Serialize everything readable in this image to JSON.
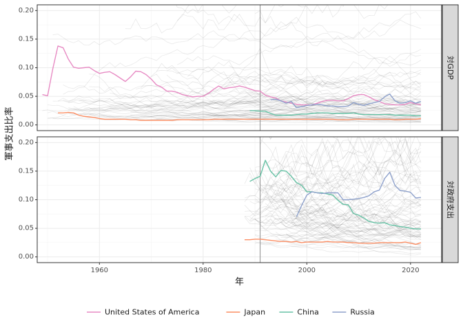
{
  "chart_data": {
    "type": "line",
    "x_axis": {
      "label": "年",
      "lim": [
        1948,
        2026
      ],
      "ticks": [
        1960,
        1980,
        2000,
        2020
      ],
      "tick_labels": [
        "1960",
        "1980",
        "2000",
        "2020"
      ]
    },
    "y_axis": {
      "label": "軍事支出比率",
      "lim": [
        -0.01,
        0.21
      ],
      "ticks": [
        0.0,
        0.05,
        0.1,
        0.15,
        0.2
      ],
      "tick_labels": [
        "0.00",
        "0.05",
        "0.10",
        "0.15",
        "0.20"
      ]
    },
    "reference_line": {
      "x": 1991
    },
    "grid": true,
    "legend_position": "bottom",
    "background_lines": "many other countries drawn as faint grey lines",
    "panels": [
      {
        "strip": "対GDP",
        "series": [
          {
            "name": "United States of America",
            "color": "#E78AC3",
            "x": [
              1949,
              1950,
              1951,
              1952,
              1953,
              1954,
              1955,
              1956,
              1957,
              1958,
              1959,
              1960,
              1961,
              1962,
              1963,
              1964,
              1965,
              1966,
              1967,
              1968,
              1969,
              1970,
              1971,
              1972,
              1973,
              1974,
              1975,
              1976,
              1977,
              1978,
              1979,
              1980,
              1981,
              1982,
              1983,
              1984,
              1985,
              1986,
              1987,
              1988,
              1989,
              1990,
              1991,
              1992,
              1993,
              1994,
              1995,
              1996,
              1997,
              1998,
              1999,
              2000,
              2001,
              2002,
              2003,
              2004,
              2005,
              2006,
              2007,
              2008,
              2009,
              2010,
              2011,
              2012,
              2013,
              2014,
              2015,
              2016,
              2017,
              2018,
              2019,
              2020,
              2021,
              2022
            ],
            "y": [
              0.053,
              0.051,
              0.098,
              0.138,
              0.135,
              0.115,
              0.101,
              0.099,
              0.1,
              0.101,
              0.095,
              0.09,
              0.092,
              0.093,
              0.088,
              0.082,
              0.076,
              0.084,
              0.094,
              0.093,
              0.088,
              0.08,
              0.07,
              0.066,
              0.059,
              0.059,
              0.057,
              0.053,
              0.051,
              0.049,
              0.05,
              0.05,
              0.055,
              0.062,
              0.068,
              0.063,
              0.065,
              0.066,
              0.068,
              0.066,
              0.063,
              0.06,
              0.059,
              0.052,
              0.049,
              0.047,
              0.042,
              0.04,
              0.038,
              0.036,
              0.035,
              0.035,
              0.035,
              0.038,
              0.041,
              0.043,
              0.043,
              0.042,
              0.042,
              0.046,
              0.051,
              0.053,
              0.053,
              0.049,
              0.044,
              0.041,
              0.037,
              0.036,
              0.035,
              0.035,
              0.036,
              0.039,
              0.037,
              0.035
            ]
          },
          {
            "name": "Japan",
            "color": "#FC8D62",
            "x": [
              1952,
              1953,
              1954,
              1955,
              1956,
              1957,
              1958,
              1959,
              1960,
              1961,
              1962,
              1963,
              1964,
              1965,
              1966,
              1967,
              1968,
              1969,
              1970,
              1971,
              1972,
              1973,
              1974,
              1975,
              1976,
              1977,
              1978,
              1979,
              1980,
              1981,
              1982,
              1983,
              1984,
              1985,
              1986,
              1987,
              1988,
              1989,
              1990,
              1991,
              1992,
              1993,
              1994,
              1995,
              1996,
              1997,
              1998,
              1999,
              2000,
              2001,
              2002,
              2003,
              2004,
              2005,
              2006,
              2007,
              2008,
              2009,
              2010,
              2011,
              2012,
              2013,
              2014,
              2015,
              2016,
              2017,
              2018,
              2019,
              2020,
              2021,
              2022
            ],
            "y": [
              0.021,
              0.021,
              0.022,
              0.021,
              0.017,
              0.015,
              0.014,
              0.013,
              0.011,
              0.01,
              0.01,
              0.01,
              0.01,
              0.01,
              0.009,
              0.009,
              0.008,
              0.008,
              0.008,
              0.008,
              0.008,
              0.008,
              0.008,
              0.009,
              0.009,
              0.009,
              0.009,
              0.009,
              0.009,
              0.009,
              0.01,
              0.01,
              0.01,
              0.01,
              0.01,
              0.01,
              0.01,
              0.01,
              0.01,
              0.01,
              0.01,
              0.01,
              0.01,
              0.01,
              0.01,
              0.01,
              0.01,
              0.01,
              0.01,
              0.01,
              0.01,
              0.01,
              0.01,
              0.01,
              0.009,
              0.009,
              0.009,
              0.01,
              0.01,
              0.01,
              0.01,
              0.01,
              0.01,
              0.01,
              0.01,
              0.009,
              0.009,
              0.01,
              0.01,
              0.01,
              0.011
            ]
          },
          {
            "name": "China",
            "color": "#66C2A5",
            "x": [
              1989,
              1990,
              1991,
              1992,
              1993,
              1994,
              1995,
              1996,
              1997,
              1998,
              1999,
              2000,
              2001,
              2002,
              2003,
              2004,
              2005,
              2006,
              2007,
              2008,
              2009,
              2010,
              2011,
              2012,
              2013,
              2014,
              2015,
              2016,
              2017,
              2018,
              2019,
              2020,
              2021,
              2022
            ],
            "y": [
              0.025,
              0.025,
              0.024,
              0.024,
              0.02,
              0.017,
              0.017,
              0.017,
              0.017,
              0.018,
              0.019,
              0.019,
              0.02,
              0.021,
              0.021,
              0.021,
              0.02,
              0.02,
              0.02,
              0.02,
              0.021,
              0.019,
              0.018,
              0.018,
              0.018,
              0.018,
              0.018,
              0.018,
              0.017,
              0.017,
              0.017,
              0.017,
              0.016,
              0.016
            ]
          },
          {
            "name": "Russia",
            "color": "#8DA0CB",
            "x": [
              1993,
              1994,
              1995,
              1996,
              1997,
              1998,
              1999,
              2000,
              2001,
              2002,
              2003,
              2004,
              2005,
              2006,
              2007,
              2008,
              2009,
              2010,
              2011,
              2012,
              2013,
              2014,
              2015,
              2016,
              2017,
              2018,
              2019,
              2020,
              2021,
              2022
            ],
            "y": [
              0.044,
              0.045,
              0.042,
              0.038,
              0.041,
              0.03,
              0.032,
              0.034,
              0.035,
              0.036,
              0.035,
              0.033,
              0.033,
              0.032,
              0.032,
              0.033,
              0.039,
              0.036,
              0.034,
              0.037,
              0.039,
              0.041,
              0.049,
              0.054,
              0.042,
              0.038,
              0.039,
              0.042,
              0.038,
              0.041
            ]
          }
        ]
      },
      {
        "strip": "対政府支出",
        "series": [
          {
            "name": "Japan",
            "color": "#FC8D62",
            "x": [
              1988,
              1989,
              1990,
              1991,
              1992,
              1993,
              1994,
              1995,
              1996,
              1997,
              1998,
              1999,
              2000,
              2001,
              2002,
              2003,
              2004,
              2005,
              2006,
              2007,
              2008,
              2009,
              2010,
              2011,
              2012,
              2013,
              2014,
              2015,
              2016,
              2017,
              2018,
              2019,
              2020,
              2021,
              2022
            ],
            "y": [
              0.03,
              0.03,
              0.031,
              0.031,
              0.03,
              0.029,
              0.028,
              0.027,
              0.027,
              0.026,
              0.027,
              0.025,
              0.026,
              0.026,
              0.026,
              0.026,
              0.027,
              0.026,
              0.026,
              0.026,
              0.025,
              0.025,
              0.024,
              0.024,
              0.024,
              0.024,
              0.025,
              0.025,
              0.025,
              0.025,
              0.025,
              0.026,
              0.024,
              0.022,
              0.025
            ]
          },
          {
            "name": "China",
            "color": "#66C2A5",
            "x": [
              1989,
              1990,
              1991,
              1992,
              1993,
              1994,
              1995,
              1996,
              1997,
              1998,
              1999,
              2000,
              2001,
              2002,
              2003,
              2004,
              2005,
              2006,
              2007,
              2008,
              2009,
              2010,
              2011,
              2012,
              2013,
              2014,
              2015,
              2016,
              2017,
              2018,
              2019,
              2020,
              2021,
              2022
            ],
            "y": [
              0.132,
              0.137,
              0.141,
              0.169,
              0.15,
              0.14,
              0.151,
              0.15,
              0.141,
              0.13,
              0.125,
              0.114,
              0.114,
              0.112,
              0.112,
              0.11,
              0.108,
              0.099,
              0.092,
              0.091,
              0.076,
              0.073,
              0.068,
              0.062,
              0.06,
              0.059,
              0.06,
              0.056,
              0.055,
              0.053,
              0.052,
              0.05,
              0.049,
              0.049
            ]
          },
          {
            "name": "Russia",
            "color": "#8DA0CB",
            "x": [
              1998,
              1999,
              2000,
              2001,
              2002,
              2003,
              2004,
              2005,
              2006,
              2007,
              2008,
              2009,
              2010,
              2011,
              2012,
              2013,
              2014,
              2015,
              2016,
              2017,
              2018,
              2019,
              2020,
              2021,
              2022
            ],
            "y": [
              0.07,
              0.09,
              0.108,
              0.114,
              0.112,
              0.111,
              0.112,
              0.112,
              0.112,
              0.1,
              0.1,
              0.101,
              0.102,
              0.104,
              0.107,
              0.114,
              0.117,
              0.137,
              0.148,
              0.125,
              0.116,
              0.115,
              0.113,
              0.103,
              0.104
            ]
          }
        ]
      }
    ],
    "legend": [
      {
        "name": "United States of America",
        "color": "#E78AC3"
      },
      {
        "name": "Japan",
        "color": "#FC8D62"
      },
      {
        "name": "China",
        "color": "#66C2A5"
      },
      {
        "name": "Russia",
        "color": "#8DA0CB"
      }
    ]
  }
}
